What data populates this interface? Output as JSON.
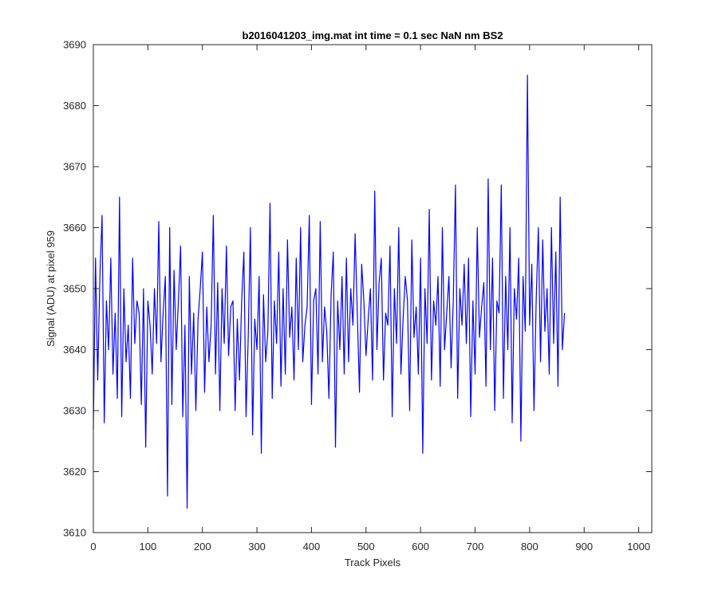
{
  "chart_data": {
    "type": "line",
    "title": "b2016041203_img.mat int time = 0.1 sec  NaN nm BS2",
    "xlabel": "Track Pixels",
    "ylabel": "Signal (ADU) at pixel 959",
    "xlim": [
      0,
      1024
    ],
    "ylim": [
      3610,
      3690
    ],
    "x_ticks": [
      0,
      100,
      200,
      300,
      400,
      500,
      600,
      700,
      800,
      900,
      1000
    ],
    "y_ticks": [
      3610,
      3620,
      3630,
      3640,
      3650,
      3660,
      3670,
      3680,
      3690
    ],
    "grid": false,
    "line_color": "#0000ff",
    "x_step": 4,
    "series": [
      {
        "values": [
          3627,
          3655,
          3635,
          3652,
          3662,
          3628,
          3648,
          3640,
          3655,
          3636,
          3646,
          3632,
          3665,
          3629,
          3650,
          3638,
          3644,
          3632,
          3655,
          3641,
          3648,
          3646,
          3631,
          3650,
          3624,
          3648,
          3644,
          3636,
          3650,
          3641,
          3661,
          3638,
          3646,
          3652,
          3616,
          3660,
          3631,
          3653,
          3640,
          3648,
          3657,
          3629,
          3644,
          3614,
          3652,
          3636,
          3646,
          3630,
          3645,
          3650,
          3656,
          3633,
          3647,
          3638,
          3644,
          3662,
          3636,
          3651,
          3630,
          3650,
          3641,
          3657,
          3639,
          3647,
          3648,
          3630,
          3645,
          3635,
          3648,
          3656,
          3629,
          3642,
          3660,
          3626,
          3645,
          3640,
          3652,
          3623,
          3649,
          3638,
          3643,
          3664,
          3632,
          3648,
          3641,
          3656,
          3634,
          3650,
          3636,
          3658,
          3642,
          3647,
          3635,
          3655,
          3640,
          3660,
          3638,
          3644,
          3647,
          3662,
          3631,
          3648,
          3650,
          3636,
          3661,
          3638,
          3647,
          3643,
          3632,
          3649,
          3656,
          3624,
          3648,
          3640,
          3652,
          3636,
          3655,
          3638,
          3650,
          3644,
          3659,
          3646,
          3633,
          3654,
          3648,
          3639,
          3645,
          3650,
          3635,
          3666,
          3640,
          3651,
          3655,
          3635,
          3646,
          3644,
          3657,
          3629,
          3650,
          3641,
          3660,
          3636,
          3645,
          3652,
          3648,
          3630,
          3658,
          3642,
          3647,
          3636,
          3655,
          3623,
          3650,
          3641,
          3663,
          3635,
          3648,
          3644,
          3652,
          3634,
          3660,
          3640,
          3646,
          3652,
          3637,
          3648,
          3667,
          3632,
          3650,
          3644,
          3654,
          3641,
          3655,
          3629,
          3648,
          3636,
          3660,
          3642,
          3647,
          3651,
          3634,
          3668,
          3640,
          3655,
          3630,
          3648,
          3646,
          3667,
          3632,
          3652,
          3640,
          3660,
          3628,
          3650,
          3645,
          3655,
          3625,
          3652,
          3643,
          3685,
          3644,
          3654,
          3630,
          3648,
          3660,
          3638,
          3658,
          3643,
          3650,
          3636,
          3660,
          3641,
          3656,
          3634,
          3665,
          3640,
          3646
        ]
      }
    ]
  }
}
